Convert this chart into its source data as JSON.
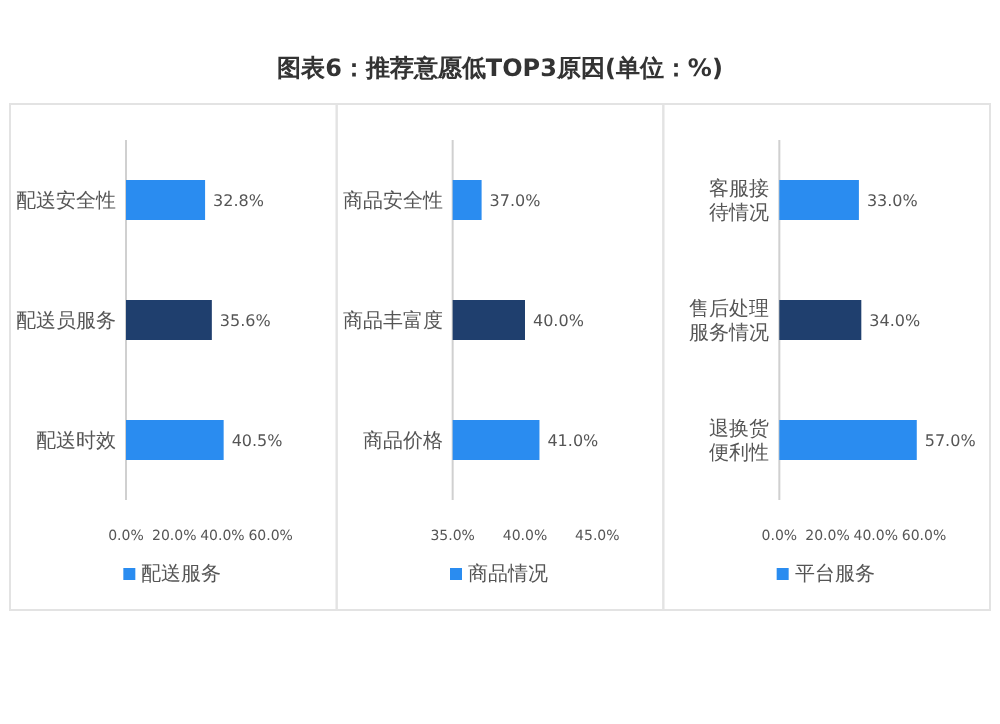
{
  "chart_data": [
    {
      "type": "bar",
      "orientation": "horizontal",
      "categories": [
        "配送安全性",
        "配送员服务",
        "配送时效"
      ],
      "series": [
        {
          "name": "配送服务",
          "color": "#2a8cf0",
          "colors": [
            "#2a8cf0",
            "#1f3f6e",
            "#2a8cf0"
          ],
          "values": [
            32.8,
            35.6,
            40.5
          ],
          "value_labels": [
            "32.8%",
            "35.6%",
            "40.5%"
          ]
        }
      ],
      "xlim": [
        0,
        60
      ],
      "xticks": [
        {
          "value": 0,
          "label": "0.0%"
        },
        {
          "value": 20,
          "label": "20.0%"
        },
        {
          "value": 40,
          "label": "40.0%"
        },
        {
          "value": 60,
          "label": "60.0%"
        }
      ],
      "legend": "bottom"
    },
    {
      "type": "bar",
      "orientation": "horizontal",
      "title": "图表6：推荐意愿低TOP3原因(单位：%)",
      "categories": [
        "商品安全性",
        "商品丰富度",
        "商品价格"
      ],
      "series": [
        {
          "name": "商品情况",
          "color": "#2a8cf0",
          "colors": [
            "#2a8cf0",
            "#1f3f6e",
            "#2a8cf0"
          ],
          "values": [
            37.0,
            40.0,
            41.0
          ],
          "value_labels": [
            "37.0%",
            "40.0%",
            "41.0%"
          ]
        }
      ],
      "xlim": [
        35,
        45
      ],
      "xticks": [
        {
          "value": 35,
          "label": "35.0%"
        },
        {
          "value": 40,
          "label": "40.0%"
        },
        {
          "value": 45,
          "label": "45.0%"
        }
      ],
      "legend": "bottom"
    },
    {
      "type": "bar",
      "orientation": "horizontal",
      "categories": [
        "客服接待情况",
        "售后处理服务情况",
        "退换货便利性"
      ],
      "series": [
        {
          "name": "平台服务",
          "color": "#2a8cf0",
          "colors": [
            "#2a8cf0",
            "#1f3f6e",
            "#2a8cf0"
          ],
          "values": [
            33.0,
            34.0,
            57.0
          ],
          "value_labels": [
            "33.0%",
            "34.0%",
            "57.0%"
          ]
        }
      ],
      "xlim": [
        0,
        60
      ],
      "xticks": [
        {
          "value": 0,
          "label": "0.0%"
        },
        {
          "value": 20,
          "label": "20.0%"
        },
        {
          "value": 40,
          "label": "40.0%"
        },
        {
          "value": 60,
          "label": "60.0%"
        }
      ],
      "legend": "bottom"
    }
  ]
}
